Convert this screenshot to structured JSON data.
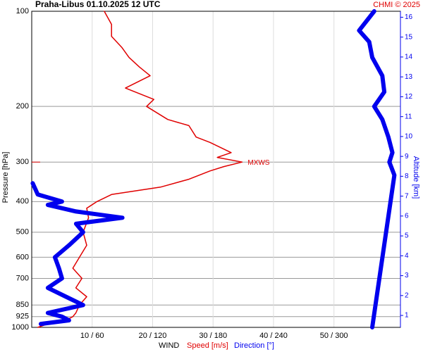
{
  "chart_data": {
    "type": "wind-profile",
    "title": "Praha-Libus    01.10.2025 12 UTC",
    "credit": "CHMI © 2025",
    "ylabel": "Pressure [hPa]",
    "y2label": "Altitude [km]",
    "xlabel": "WIND",
    "annotation": "MXWS",
    "log_y": true,
    "grid": true,
    "ylim": [
      1000,
      100
    ],
    "yticks": [
      100,
      200,
      300,
      400,
      500,
      600,
      700,
      850,
      925,
      1000
    ],
    "y2lim": [
      0.4,
      16.3
    ],
    "y2ticks": [
      1,
      2,
      3,
      4,
      5,
      6,
      7,
      8,
      9,
      10,
      11,
      12,
      13,
      14,
      15,
      16
    ],
    "xlim": [
      0,
      61
    ],
    "x2lim": [
      0,
      366
    ],
    "xticks": [
      {
        "value": 10,
        "label": "10 / 60"
      },
      {
        "value": 20,
        "label": "20 / 120"
      },
      {
        "value": 30,
        "label": "30 / 180"
      },
      {
        "value": 40,
        "label": "40 / 240"
      },
      {
        "value": 50,
        "label": "50 / 300"
      }
    ],
    "series": [
      {
        "name": "Speed [m/s]",
        "color": "#e00000",
        "axis": "x",
        "pressure": [
          1000,
          975,
          950,
          925,
          900,
          850,
          800,
          750,
          700,
          650,
          600,
          550,
          500,
          450,
          420,
          400,
          380,
          360,
          340,
          320,
          310,
          300,
          290,
          280,
          260,
          250,
          230,
          220,
          200,
          190,
          175,
          160,
          150,
          140,
          130,
          120,
          110,
          100
        ],
        "values": [
          1,
          2.7,
          5.6,
          6.8,
          7.3,
          7.9,
          9.1,
          7.3,
          8.3,
          6.8,
          7.9,
          9.1,
          8.5,
          9.4,
          9.1,
          10.8,
          13.2,
          21.3,
          26,
          29.5,
          31.8,
          34.8,
          30.7,
          33,
          29.5,
          27.2,
          26,
          22.5,
          19,
          20.2,
          15.5,
          19.6,
          17.8,
          16.1,
          14.9,
          13.2,
          13.2,
          12
        ]
      },
      {
        "name": "Direction [°]",
        "color": "#0000ee",
        "axis": "x2",
        "pressure": [
          975,
          950,
          925,
          900,
          850,
          800,
          750,
          700,
          650,
          600,
          550,
          500,
          470,
          450,
          430,
          410,
          400,
          380,
          350
        ],
        "values": [
          9,
          37,
          30,
          16,
          51,
          34,
          16,
          30,
          27,
          23,
          37,
          51,
          44,
          90,
          44,
          16,
          30,
          6,
          1
        ]
      },
      {
        "name": null,
        "color": "#0000ee",
        "axis": "x2",
        "pressure": [
          1000,
          330,
          300,
          280,
          250,
          220,
          200,
          180,
          160,
          140,
          125,
          115,
          100
        ],
        "values": [
          338,
          360,
          355,
          358,
          354,
          348,
          340,
          350,
          348,
          338,
          335,
          325,
          340
        ]
      }
    ]
  }
}
